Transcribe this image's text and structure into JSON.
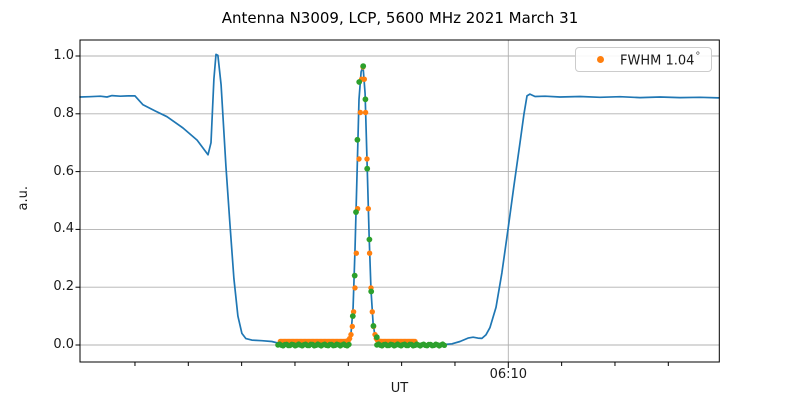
{
  "legend": {
    "label": "FWHM 1.04",
    "degree_symbol": "°",
    "marker_color": "#ff7f0e"
  },
  "colors": {
    "signal_line": "#1f77b4",
    "data_points": "#2ca02c",
    "fit_points": "#ff7f0e",
    "grid": "#b0b0b0",
    "spine": "#000000"
  },
  "chart_data": {
    "type": "line+scatter",
    "title": "Antenna N3009, LCP, 5600 MHz 2021 March 31",
    "xlabel": "UT",
    "ylabel": "a.u.",
    "x_unit": "minutes after 06:00 UT (only 06:10 labeled; minor ticks every 2 min, estimated)",
    "x_range": [
      -6.06,
      17.9
    ],
    "y_range": [
      -0.059,
      1.055
    ],
    "grid": "horizontal lines at all y ticks, vertical line at major x tick",
    "legend_position": "upper right",
    "yticks": [
      0.0,
      0.2,
      0.4,
      0.6,
      0.8,
      1.0
    ],
    "xticks": {
      "minor_t": [
        -4,
        -2,
        0,
        2,
        4,
        6,
        8,
        12,
        14,
        16
      ],
      "major_t": 10,
      "major_label": "06:10"
    },
    "series": [
      {
        "name": "antenna-signal",
        "kind": "line",
        "color": "#1f77b4",
        "points": [
          [
            -6.06,
            0.858
          ],
          [
            -5.7,
            0.859
          ],
          [
            -5.3,
            0.861
          ],
          [
            -5.05,
            0.858
          ],
          [
            -4.86,
            0.863
          ],
          [
            -4.55,
            0.861
          ],
          [
            -4.25,
            0.862
          ],
          [
            -4.0,
            0.862
          ],
          [
            -3.7,
            0.831
          ],
          [
            -3.25,
            0.81
          ],
          [
            -2.8,
            0.79
          ],
          [
            -2.2,
            0.751
          ],
          [
            -1.67,
            0.709
          ],
          [
            -1.26,
            0.658
          ],
          [
            -1.15,
            0.7
          ],
          [
            -1.04,
            0.92
          ],
          [
            -0.96,
            1.006
          ],
          [
            -0.89,
            1.002
          ],
          [
            -0.77,
            0.9
          ],
          [
            -0.59,
            0.62
          ],
          [
            -0.44,
            0.42
          ],
          [
            -0.29,
            0.23
          ],
          [
            -0.14,
            0.1
          ],
          [
            0.01,
            0.04
          ],
          [
            0.16,
            0.022
          ],
          [
            0.38,
            0.017
          ],
          [
            0.76,
            0.015
          ],
          [
            1.13,
            0.012
          ],
          [
            1.44,
            0.005
          ],
          [
            1.74,
            0.001
          ],
          [
            2.19,
            0.0
          ],
          [
            2.94,
            0.0
          ],
          [
            3.69,
            0.001
          ],
          [
            3.99,
            0.004
          ],
          [
            4.1,
            0.04
          ],
          [
            4.18,
            0.13
          ],
          [
            4.25,
            0.33
          ],
          [
            4.33,
            0.6
          ],
          [
            4.4,
            0.85
          ],
          [
            4.48,
            0.945
          ],
          [
            4.55,
            0.965
          ],
          [
            4.63,
            0.87
          ],
          [
            4.7,
            0.64
          ],
          [
            4.78,
            0.38
          ],
          [
            4.85,
            0.19
          ],
          [
            4.93,
            0.075
          ],
          [
            5.0,
            0.03
          ],
          [
            5.11,
            0.008
          ],
          [
            5.3,
            0.002
          ],
          [
            5.75,
            0.0
          ],
          [
            6.69,
            0.0
          ],
          [
            7.51,
            0.001
          ],
          [
            7.89,
            0.004
          ],
          [
            8.19,
            0.012
          ],
          [
            8.49,
            0.024
          ],
          [
            8.68,
            0.027
          ],
          [
            8.86,
            0.024
          ],
          [
            9.01,
            0.023
          ],
          [
            9.16,
            0.035
          ],
          [
            9.31,
            0.06
          ],
          [
            9.54,
            0.13
          ],
          [
            9.76,
            0.25
          ],
          [
            9.99,
            0.4
          ],
          [
            10.21,
            0.55
          ],
          [
            10.44,
            0.7
          ],
          [
            10.59,
            0.8
          ],
          [
            10.7,
            0.862
          ],
          [
            10.81,
            0.868
          ],
          [
            11.0,
            0.86
          ],
          [
            11.38,
            0.861
          ],
          [
            11.94,
            0.858
          ],
          [
            12.69,
            0.86
          ],
          [
            13.44,
            0.857
          ],
          [
            14.19,
            0.859
          ],
          [
            14.94,
            0.856
          ],
          [
            15.69,
            0.858
          ],
          [
            16.44,
            0.856
          ],
          [
            17.19,
            0.857
          ],
          [
            17.9,
            0.855
          ]
        ]
      },
      {
        "name": "source-scan-data-points",
        "kind": "scatter",
        "color": "#2ca02c",
        "peak_points": [
          [
            4.17,
            0.1
          ],
          [
            4.24,
            0.24
          ],
          [
            4.29,
            0.46
          ],
          [
            4.34,
            0.71
          ],
          [
            4.41,
            0.91
          ],
          [
            4.56,
            0.965
          ],
          [
            4.64,
            0.85
          ],
          [
            4.71,
            0.61
          ],
          [
            4.79,
            0.365
          ],
          [
            4.86,
            0.185
          ],
          [
            4.94,
            0.066
          ],
          [
            5.07,
            0.027
          ]
        ],
        "zero_bands": [
          {
            "start": 1.36,
            "end": 4.06,
            "step": 0.065,
            "value": 0.0
          },
          {
            "start": 5.07,
            "end": 7.63,
            "step": 0.065,
            "value": 0.0
          }
        ]
      },
      {
        "name": "gaussian-fit-points",
        "kind": "scatter",
        "color": "#ff7f0e",
        "gaussian": {
          "center": 4.55,
          "sigma": 0.166,
          "amplitude": 0.95,
          "offset": 0.012,
          "start": 1.45,
          "end": 6.5,
          "step": 0.05
        }
      }
    ]
  }
}
